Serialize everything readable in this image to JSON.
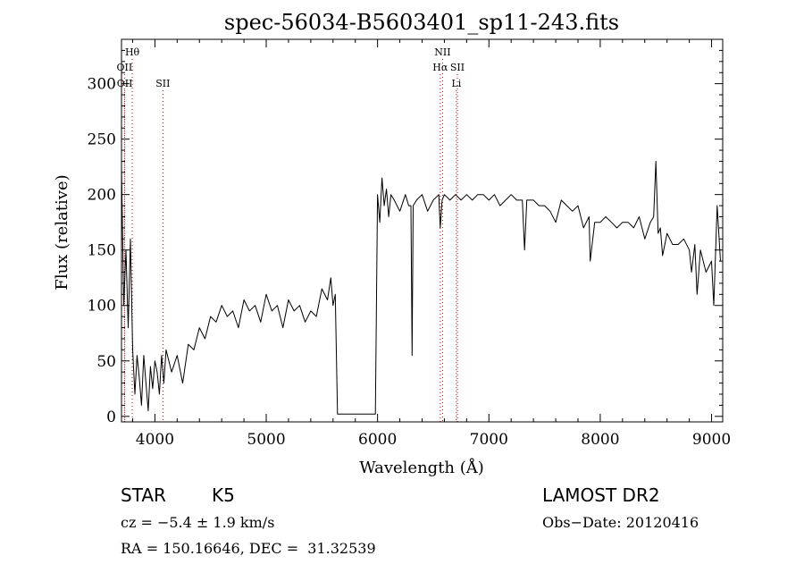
{
  "chart_data": {
    "type": "line",
    "title": "spec-56034-B5603401_sp11-243.fits",
    "xlabel": "Wavelength (Å)",
    "ylabel": "Flux (relative)",
    "xlim": [
      3700,
      9100
    ],
    "ylim": [
      -5,
      340
    ],
    "x_ticks": [
      4000,
      5000,
      6000,
      7000,
      8000,
      9000
    ],
    "y_ticks": [
      0,
      50,
      100,
      150,
      200,
      250,
      300
    ],
    "grid": false,
    "line_color": "#000000",
    "series": [
      {
        "x": [
          3700,
          3720,
          3740,
          3760,
          3780,
          3800,
          3820,
          3840,
          3860,
          3880,
          3900,
          3920,
          3940,
          3960,
          3980,
          4000,
          4020,
          4040,
          4060,
          4080,
          4100,
          4150,
          4200,
          4250,
          4300,
          4350,
          4400,
          4450,
          4500,
          4550,
          4600,
          4650,
          4700,
          4750,
          4800,
          4850,
          4900,
          4950,
          5000,
          5050,
          5100,
          5150,
          5200,
          5250,
          5300,
          5350,
          5400,
          5450,
          5500,
          5550,
          5580,
          5600,
          5620,
          5640,
          5660,
          5700,
          5800,
          5900,
          5950,
          5970,
          5980,
          6000,
          6020,
          6040,
          6060,
          6080,
          6100,
          6120,
          6150,
          6200,
          6250,
          6280,
          6300,
          6310,
          6320,
          6350,
          6400,
          6450,
          6500,
          6550,
          6563,
          6580,
          6600,
          6650,
          6700,
          6750,
          6800,
          6850,
          6900,
          6950,
          7000,
          7050,
          7100,
          7150,
          7200,
          7250,
          7300,
          7320,
          7340,
          7400,
          7450,
          7500,
          7550,
          7600,
          7650,
          7700,
          7750,
          7800,
          7850,
          7900,
          7910,
          7950,
          8000,
          8050,
          8100,
          8150,
          8200,
          8250,
          8300,
          8350,
          8400,
          8450,
          8480,
          8500,
          8520,
          8540,
          8560,
          8600,
          8650,
          8700,
          8750,
          8800,
          8820,
          8850,
          8870,
          8900,
          8950,
          9000,
          9020,
          9050,
          9080
        ],
        "values": [
          225,
          100,
          150,
          80,
          160,
          60,
          20,
          55,
          35,
          10,
          55,
          30,
          5,
          45,
          25,
          50,
          40,
          20,
          55,
          30,
          60,
          40,
          55,
          30,
          65,
          60,
          80,
          70,
          90,
          85,
          100,
          90,
          95,
          80,
          105,
          95,
          100,
          85,
          110,
          95,
          100,
          80,
          105,
          95,
          100,
          85,
          95,
          90,
          115,
          105,
          125,
          100,
          110,
          2,
          2,
          2,
          2,
          2,
          2,
          2,
          2,
          200,
          175,
          215,
          190,
          205,
          180,
          200,
          195,
          185,
          200,
          190,
          190,
          55,
          190,
          195,
          200,
          185,
          195,
          200,
          170,
          195,
          200,
          195,
          200,
          195,
          200,
          195,
          200,
          200,
          195,
          200,
          190,
          195,
          200,
          195,
          195,
          150,
          195,
          195,
          190,
          190,
          185,
          175,
          195,
          190,
          185,
          190,
          170,
          180,
          140,
          175,
          175,
          180,
          175,
          170,
          175,
          175,
          170,
          180,
          160,
          175,
          180,
          230,
          165,
          170,
          145,
          165,
          155,
          155,
          160,
          150,
          130,
          155,
          110,
          150,
          130,
          140,
          100,
          190,
          140
        ]
      }
    ],
    "line_markers": [
      {
        "label": "Hθ",
        "x": 3797,
        "row": 0,
        "color": "#000000"
      },
      {
        "label": "OII",
        "x": 3727,
        "row": 1,
        "color": "#000000"
      },
      {
        "label": "OII",
        "x": 3729,
        "row": 2,
        "color": "#000000"
      },
      {
        "label": "SII",
        "x": 4072,
        "row": 2,
        "color": "#000000"
      },
      {
        "label": "NII",
        "x": 6584,
        "row": 0,
        "color": "#000000"
      },
      {
        "label": "Hα",
        "x": 6563,
        "row": 1,
        "color": "#000000"
      },
      {
        "label": "SII",
        "x": 6717,
        "row": 1,
        "color": "#000000"
      },
      {
        "label": "Li",
        "x": 6708,
        "row": 2,
        "color": "#000000"
      }
    ],
    "marker_line_color": "#b00000"
  },
  "info": {
    "object_class": "STAR",
    "subclass": "K5",
    "survey": "LAMOST DR2",
    "redshift": "cz = −5.4 ± 1.9 km/s",
    "obs_date": "Obs−Date: 20120416",
    "coords": "RA = 150.16646, DEC =  31.32539"
  }
}
